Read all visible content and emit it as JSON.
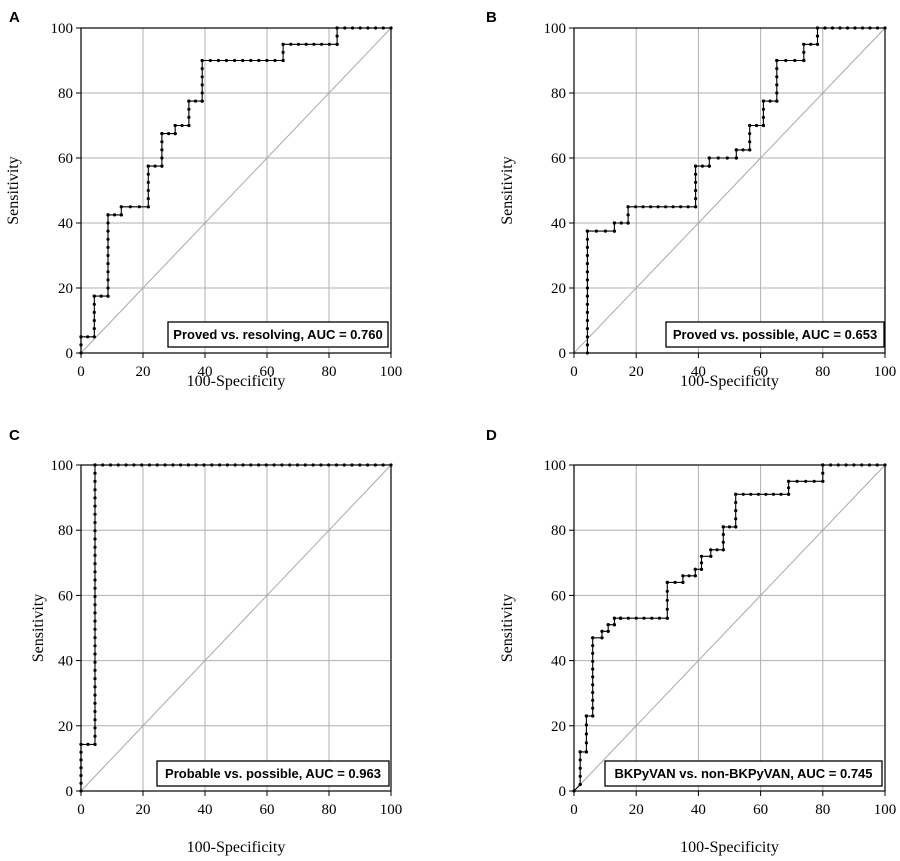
{
  "figure": {
    "colors": {
      "curve": "#000000",
      "grid": "#b0b0b0",
      "diagonal": "#a8a8a8",
      "frame": "#000000",
      "background": "#ffffff"
    }
  },
  "chart_data": [
    {
      "type": "line",
      "panel": "A",
      "xlabel": "100-Specificity",
      "ylabel": "Sensitivity",
      "xlim": [
        0,
        100
      ],
      "ylim": [
        0,
        100
      ],
      "xticks": [
        "0",
        "20",
        "40",
        "60",
        "80",
        "100"
      ],
      "yticks": [
        "0",
        "20",
        "40",
        "60",
        "80",
        "100"
      ],
      "grid": true,
      "annotation": "Proved vs. resolving, AUC = 0.760",
      "series": [
        {
          "name": "ROC",
          "x": [
            0,
            0,
            4.3,
            4.3,
            8.7,
            8.7,
            13,
            13,
            21.7,
            21.7,
            26.1,
            26.1,
            30.4,
            30.4,
            34.8,
            34.8,
            39.1,
            39.1,
            65.2,
            65.2,
            82.6,
            82.6,
            100
          ],
          "y": [
            0,
            5,
            5,
            17.5,
            17.5,
            42.5,
            42.5,
            45,
            45,
            57.5,
            57.5,
            67.5,
            67.5,
            70,
            70,
            77.5,
            77.5,
            90,
            90,
            95,
            95,
            100,
            100
          ]
        }
      ],
      "reference_line": {
        "x": [
          0,
          100
        ],
        "y": [
          0,
          100
        ]
      }
    },
    {
      "type": "line",
      "panel": "B",
      "xlabel": "100-Specificity",
      "ylabel": "Sensitivity",
      "xlim": [
        0,
        100
      ],
      "ylim": [
        0,
        100
      ],
      "xticks": [
        "0",
        "20",
        "40",
        "60",
        "80",
        "100"
      ],
      "yticks": [
        "0",
        "20",
        "40",
        "60",
        "80",
        "100"
      ],
      "grid": true,
      "annotation": "Proved vs. possible, AUC = 0.653",
      "series": [
        {
          "name": "ROC",
          "x": [
            4.3,
            4.3,
            13,
            13,
            17.4,
            17.4,
            39.1,
            39.1,
            43.5,
            43.5,
            52.2,
            52.2,
            56.5,
            56.5,
            60.9,
            60.9,
            65.2,
            65.2,
            73.9,
            73.9,
            78.3,
            78.3,
            100
          ],
          "y": [
            0,
            37.5,
            37.5,
            40,
            40,
            45,
            45,
            57.5,
            57.5,
            60,
            60,
            62.5,
            62.5,
            70,
            70,
            77.5,
            77.5,
            90,
            90,
            95,
            95,
            100,
            100
          ]
        }
      ],
      "reference_line": {
        "x": [
          0,
          100
        ],
        "y": [
          0,
          100
        ]
      }
    },
    {
      "type": "line",
      "panel": "C",
      "xlabel": "100-Specificity",
      "ylabel": "Sensitivity",
      "xlim": [
        0,
        100
      ],
      "ylim": [
        0,
        100
      ],
      "xticks": [
        "0",
        "20",
        "40",
        "60",
        "80",
        "100"
      ],
      "yticks": [
        "0",
        "20",
        "40",
        "60",
        "80",
        "100"
      ],
      "grid": true,
      "annotation": "Probable vs. possible, AUC = 0.963",
      "series": [
        {
          "name": "ROC",
          "x": [
            0,
            0,
            4.5,
            4.5,
            100
          ],
          "y": [
            0,
            14.3,
            14.3,
            100,
            100
          ]
        }
      ],
      "reference_line": {
        "x": [
          0,
          100
        ],
        "y": [
          0,
          100
        ]
      }
    },
    {
      "type": "line",
      "panel": "D",
      "xlabel": "100-Specificity",
      "ylabel": "Sensitivity",
      "xlim": [
        0,
        100
      ],
      "ylim": [
        0,
        100
      ],
      "xticks": [
        "0",
        "20",
        "40",
        "60",
        "80",
        "100"
      ],
      "yticks": [
        "0",
        "20",
        "40",
        "60",
        "80",
        "100"
      ],
      "grid": true,
      "annotation": "BKPyVAN vs. non-BKPyVAN, AUC = 0.745",
      "series": [
        {
          "name": "ROC",
          "x": [
            0,
            2,
            2,
            4,
            4,
            6,
            6,
            9,
            9,
            11,
            11,
            13,
            13,
            15,
            15,
            30,
            30,
            35,
            35,
            39,
            39,
            41,
            41,
            44,
            44,
            48,
            48,
            52,
            52,
            69,
            69,
            80,
            80,
            100
          ],
          "y": [
            0,
            2,
            12,
            12,
            23,
            23,
            47,
            47,
            49,
            49,
            51,
            51,
            53,
            53,
            53,
            53,
            64,
            64,
            66,
            66,
            68,
            68,
            72,
            72,
            74,
            74,
            81,
            81,
            91,
            91,
            95,
            95,
            100,
            100
          ]
        }
      ],
      "reference_line": {
        "x": [
          0,
          100
        ],
        "y": [
          0,
          100
        ]
      }
    }
  ]
}
